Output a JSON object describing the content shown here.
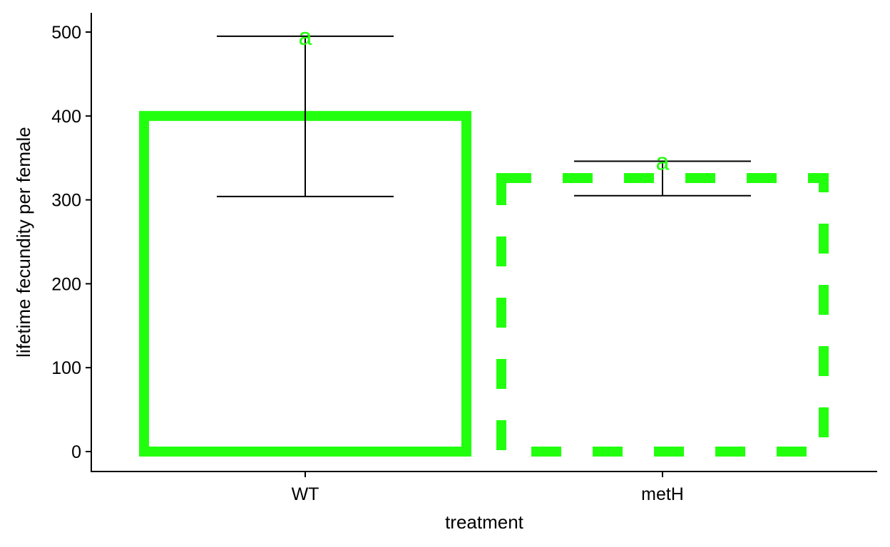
{
  "chart_data": {
    "type": "bar",
    "title": "",
    "xlabel": "treatment",
    "ylabel": "lifetime fecundity per female",
    "categories": [
      "WT",
      "metH"
    ],
    "values": [
      400,
      326
    ],
    "error_low": [
      304,
      305
    ],
    "error_high": [
      495,
      346
    ],
    "significance_labels": [
      "a",
      "a"
    ],
    "bar_line_styles": [
      "solid",
      "dashed"
    ],
    "ylim": [
      -24,
      525
    ],
    "yticks": [
      0,
      100,
      200,
      300,
      400,
      500
    ],
    "grid": false,
    "legend": "none"
  },
  "colors": {
    "bar_outline": "#22ff0e",
    "label": "#22ff0e",
    "axis": "#000000",
    "error_bar": "#000000"
  }
}
